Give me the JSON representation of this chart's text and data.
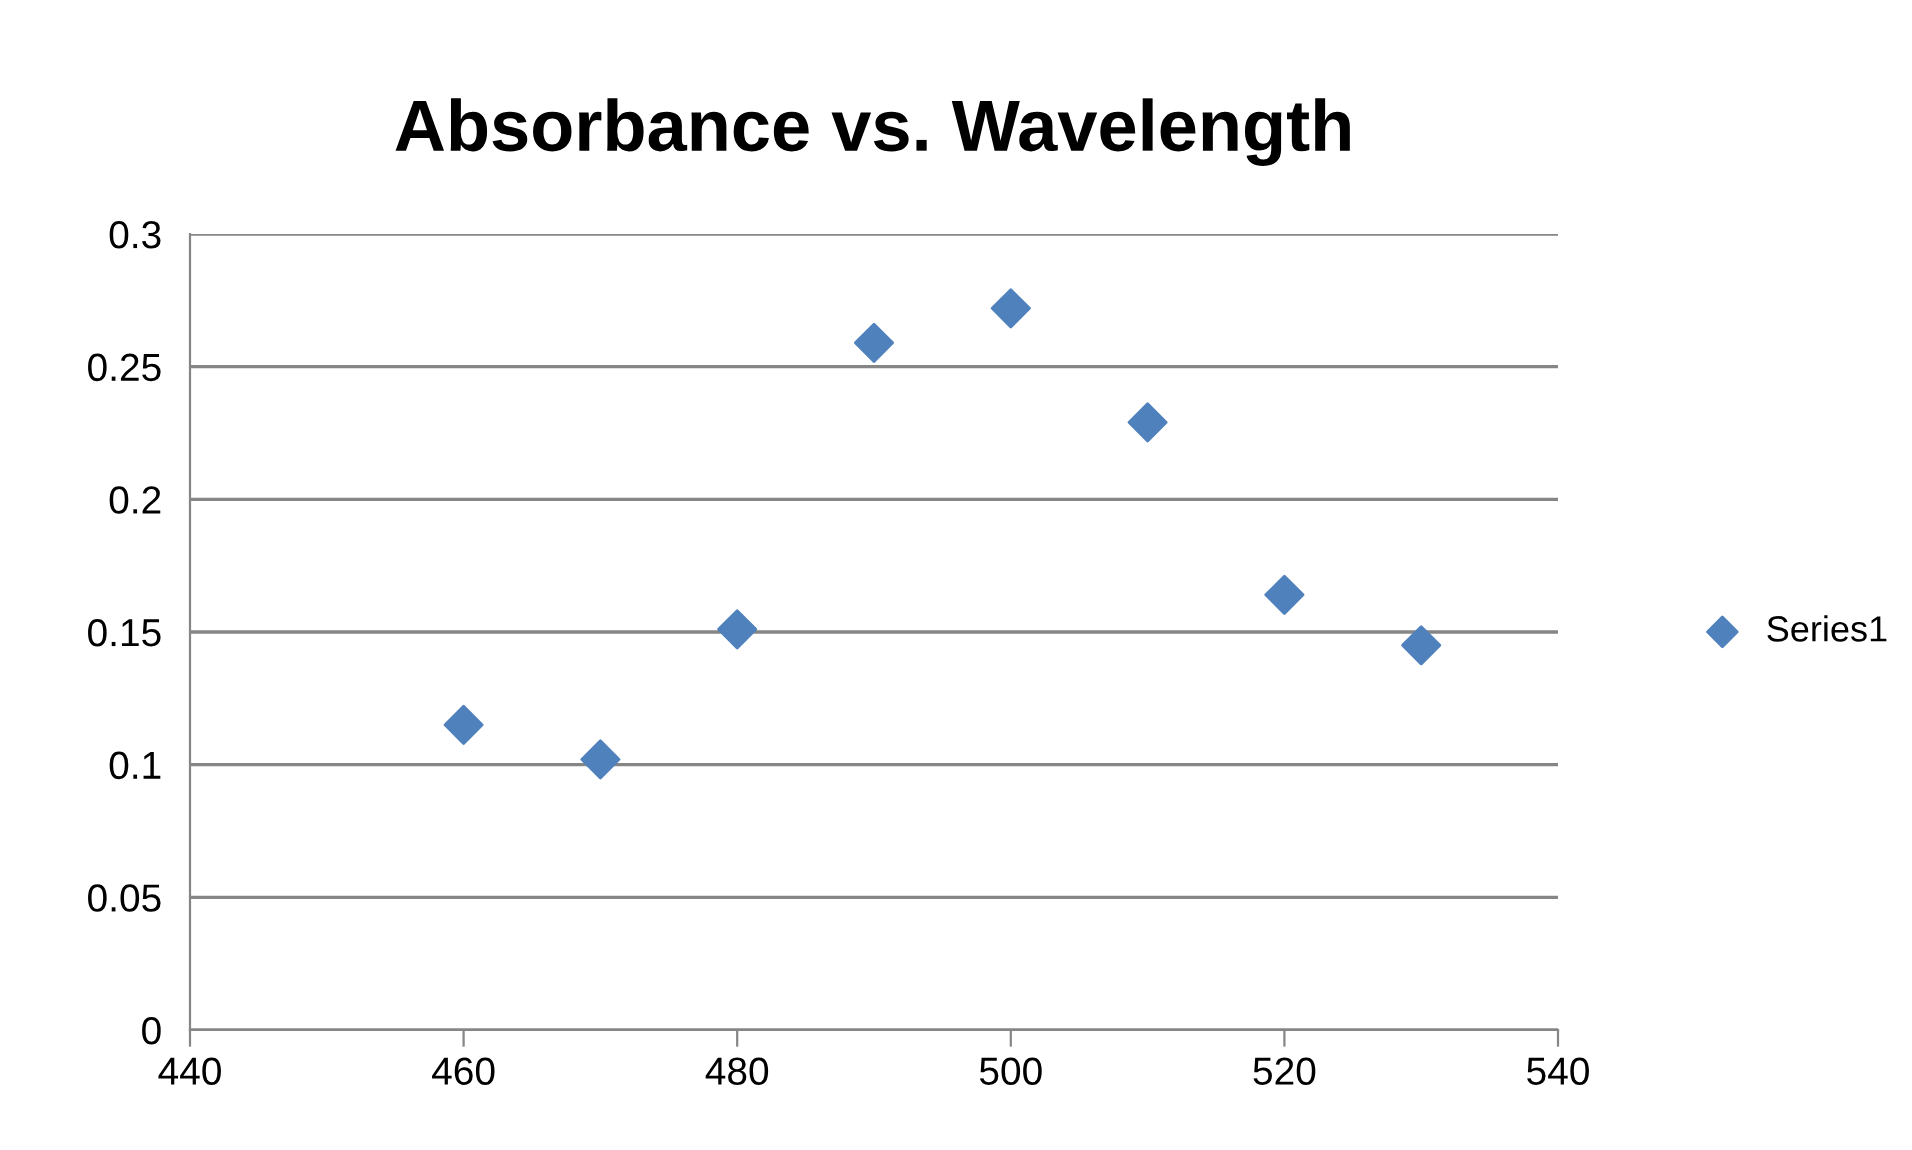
{
  "chart_data": {
    "type": "scatter",
    "title": "Absorbance vs. Wavelength",
    "x": [
      460,
      470,
      480,
      490,
      500,
      510,
      520,
      530
    ],
    "series": [
      {
        "name": "Series1",
        "color": "#4f81bd",
        "values": [
          0.115,
          0.102,
          0.151,
          0.259,
          0.272,
          0.229,
          0.164,
          0.145
        ]
      }
    ],
    "xlim": [
      440,
      540
    ],
    "xticks": [
      440,
      460,
      480,
      500,
      520,
      540
    ],
    "ylim": [
      0,
      0.3
    ],
    "yticks": [
      0,
      0.05,
      0.1,
      0.15,
      0.2,
      0.25,
      0.3
    ],
    "grid": "y",
    "legend": "right",
    "marker": "diamond"
  }
}
